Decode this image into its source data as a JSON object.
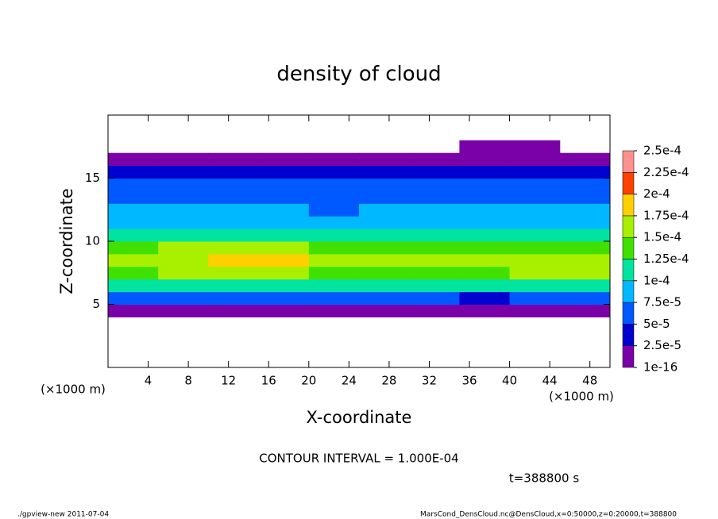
{
  "chart_data": {
    "type": "contour",
    "title": "density of cloud",
    "x_label": "X-coordinate",
    "y_label": "Z-coordinate",
    "x_unit_label": "(×1000 m)",
    "y_unit_label": "(×1000 m)",
    "annotation": "CONTOUR INTERVAL = 1.000E-04",
    "time_label": "t=388800 s",
    "footer_left": "./gpview-new  2011-07-04",
    "footer_right": "MarsCond_DensCloud.nc@DensCloud,x=0:50000,z=0:20000,t=388800",
    "xlim": [
      0,
      50
    ],
    "ylim": [
      0,
      20
    ],
    "xticks": [
      4,
      8,
      12,
      16,
      20,
      24,
      28,
      32,
      36,
      40,
      44,
      48
    ],
    "yticks": [
      5,
      10,
      15
    ],
    "x": [
      2.5,
      7.5,
      12.5,
      17.5,
      22.5,
      27.5,
      32.5,
      37.5,
      42.5,
      47.5
    ],
    "y": [
      0.5,
      1.5,
      2.5,
      3.5,
      4.5,
      5.5,
      6.5,
      7.5,
      8.5,
      9.5,
      10.5,
      11.5,
      12.5,
      13.5,
      14.5,
      15.5,
      16.5,
      17.5,
      18.5,
      19.5
    ],
    "z": [
      [
        0,
        0,
        0,
        0,
        0,
        0,
        0,
        0,
        0,
        0
      ],
      [
        0,
        0,
        0,
        0,
        0,
        0,
        0,
        0,
        0,
        0
      ],
      [
        0,
        0,
        0,
        0,
        0,
        0,
        0,
        0,
        0,
        0
      ],
      [
        0,
        0,
        0,
        0,
        0,
        0,
        0,
        0,
        0,
        0
      ],
      [
        1e-05,
        1e-05,
        1e-05,
        1e-05,
        1e-05,
        1e-05,
        1e-05,
        1e-05,
        1e-05,
        1e-05
      ],
      [
        6e-05,
        5e-05,
        6e-05,
        6e-05,
        6e-05,
        6e-05,
        5e-05,
        4e-05,
        5e-05,
        6e-05
      ],
      [
        0.000105,
        0.00011,
        0.00012,
        0.00011,
        0.000105,
        0.00011,
        0.000105,
        0.0001,
        0.00011,
        0.00011
      ],
      [
        0.00014,
        0.00015,
        0.00017,
        0.00016,
        0.00014,
        0.00014,
        0.00014,
        0.00014,
        0.00016,
        0.00015
      ],
      [
        0.00016,
        0.00017,
        0.000185,
        0.00018,
        0.00016,
        0.00015,
        0.00015,
        0.00015,
        0.00017,
        0.00016
      ],
      [
        0.00014,
        0.00015,
        0.00017,
        0.00016,
        0.00014,
        0.00013,
        0.00013,
        0.00013,
        0.00014,
        0.00014
      ],
      [
        0.000105,
        0.00011,
        0.00012,
        0.00011,
        0.0001,
        0.0001,
        0.0001,
        0.0001,
        0.000105,
        0.000105
      ],
      [
        8.5e-05,
        9e-05,
        9e-05,
        8.5e-05,
        8e-05,
        8e-05,
        8e-05,
        8e-05,
        8.5e-05,
        8.5e-05
      ],
      [
        8e-05,
        8e-05,
        8e-05,
        7.5e-05,
        7e-05,
        7.5e-05,
        7.5e-05,
        7.5e-05,
        8e-05,
        8e-05
      ],
      [
        7e-05,
        7e-05,
        7e-05,
        7e-05,
        6.5e-05,
        7e-05,
        7e-05,
        7e-05,
        7e-05,
        7e-05
      ],
      [
        6.5e-05,
        6e-05,
        6e-05,
        6e-05,
        6e-05,
        6e-05,
        6e-05,
        6e-05,
        6e-05,
        6.5e-05
      ],
      [
        4e-05,
        4e-05,
        4e-05,
        4e-05,
        4e-05,
        4e-05,
        4e-05,
        4e-05,
        4e-05,
        4e-05
      ],
      [
        1e-05,
        1e-05,
        1e-05,
        1e-05,
        1e-05,
        1e-05,
        1e-05,
        1e-05,
        1e-05,
        1e-05
      ],
      [
        0,
        0,
        0,
        0,
        0,
        0,
        0,
        1e-05,
        1e-05,
        0
      ],
      [
        0,
        0,
        0,
        0,
        0,
        0,
        0,
        0,
        0,
        0
      ],
      [
        0,
        0,
        0,
        0,
        0,
        0,
        0,
        0,
        0,
        0
      ]
    ],
    "levels": [
      {
        "value": 1e-16,
        "label": "1e-16"
      },
      {
        "value": 2.5e-05,
        "label": "2.5e-5"
      },
      {
        "value": 5e-05,
        "label": "5e-5"
      },
      {
        "value": 7.5e-05,
        "label": "7.5e-5"
      },
      {
        "value": 0.0001,
        "label": "1e-4"
      },
      {
        "value": 0.000125,
        "label": "1.25e-4"
      },
      {
        "value": 0.00015,
        "label": "1.5e-4"
      },
      {
        "value": 0.000175,
        "label": "1.75e-4"
      },
      {
        "value": 0.0002,
        "label": "2e-4"
      },
      {
        "value": 0.000225,
        "label": "2.25e-4"
      },
      {
        "value": 0.00025,
        "label": "2.5e-4"
      }
    ],
    "colors": [
      "#7a00a8",
      "#0000d0",
      "#0058ff",
      "#00b8ff",
      "#00e4a0",
      "#40e000",
      "#a8f000",
      "#ffd000",
      "#ff4000",
      "#ff9090"
    ]
  }
}
